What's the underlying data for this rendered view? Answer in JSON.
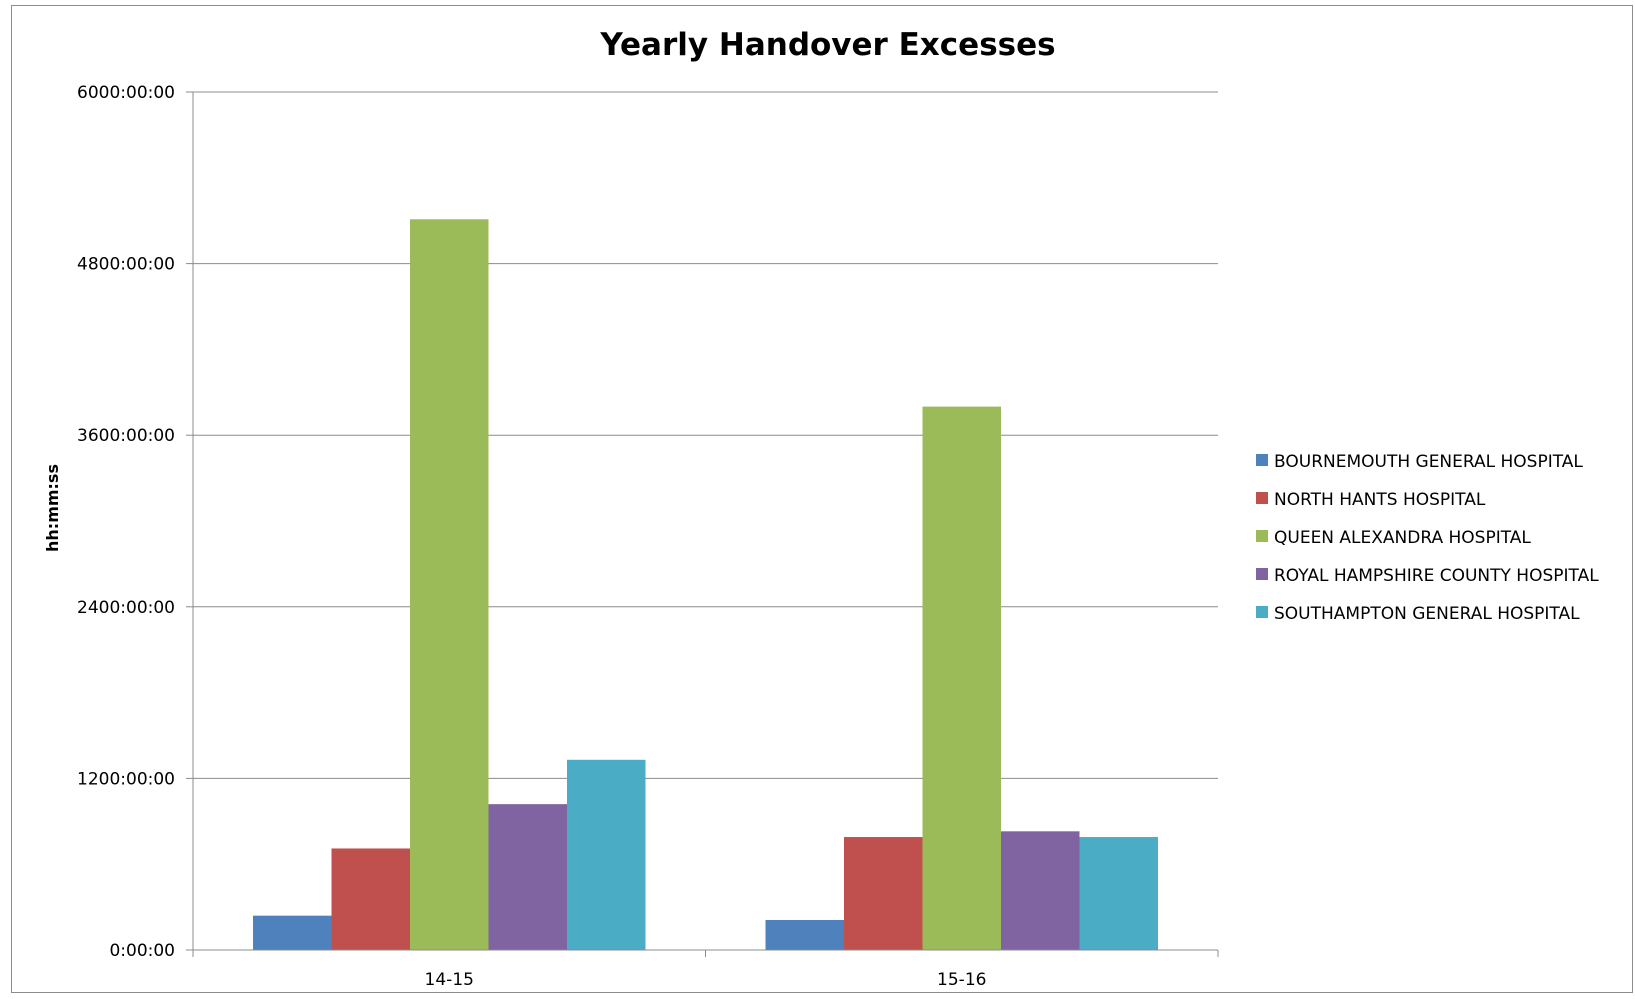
{
  "chart_data": {
    "type": "bar",
    "title": "Yearly Handover Excesses",
    "xlabel": "",
    "ylabel": "hh:mm:ss",
    "y_unit": "hours",
    "ylim": [
      0,
      6000
    ],
    "y_ticks": [
      0,
      1200,
      2400,
      3600,
      4800,
      6000
    ],
    "y_tick_labels": [
      "0:00:00",
      "1200:00:00",
      "2400:00:00",
      "3600:00:00",
      "4800:00:00",
      "6000:00:00"
    ],
    "categories": [
      "14-15",
      "15-16"
    ],
    "series": [
      {
        "name": "BOURNEMOUTH GENERAL HOSPITAL",
        "color": "#4F81BD",
        "values": [
          240,
          210
        ]
      },
      {
        "name": "NORTH HANTS HOSPITAL",
        "color": "#C0504D",
        "values": [
          710,
          790
        ]
      },
      {
        "name": "QUEEN ALEXANDRA HOSPITAL",
        "color": "#9BBB59",
        "values": [
          5110,
          3800
        ]
      },
      {
        "name": "ROYAL HAMPSHIRE COUNTY HOSPITAL",
        "color": "#8064A2",
        "values": [
          1020,
          830
        ]
      },
      {
        "name": "SOUTHAMPTON GENERAL HOSPITAL",
        "color": "#4BACC6",
        "values": [
          1330,
          790
        ]
      }
    ],
    "grid": true,
    "legend_position": "right"
  }
}
